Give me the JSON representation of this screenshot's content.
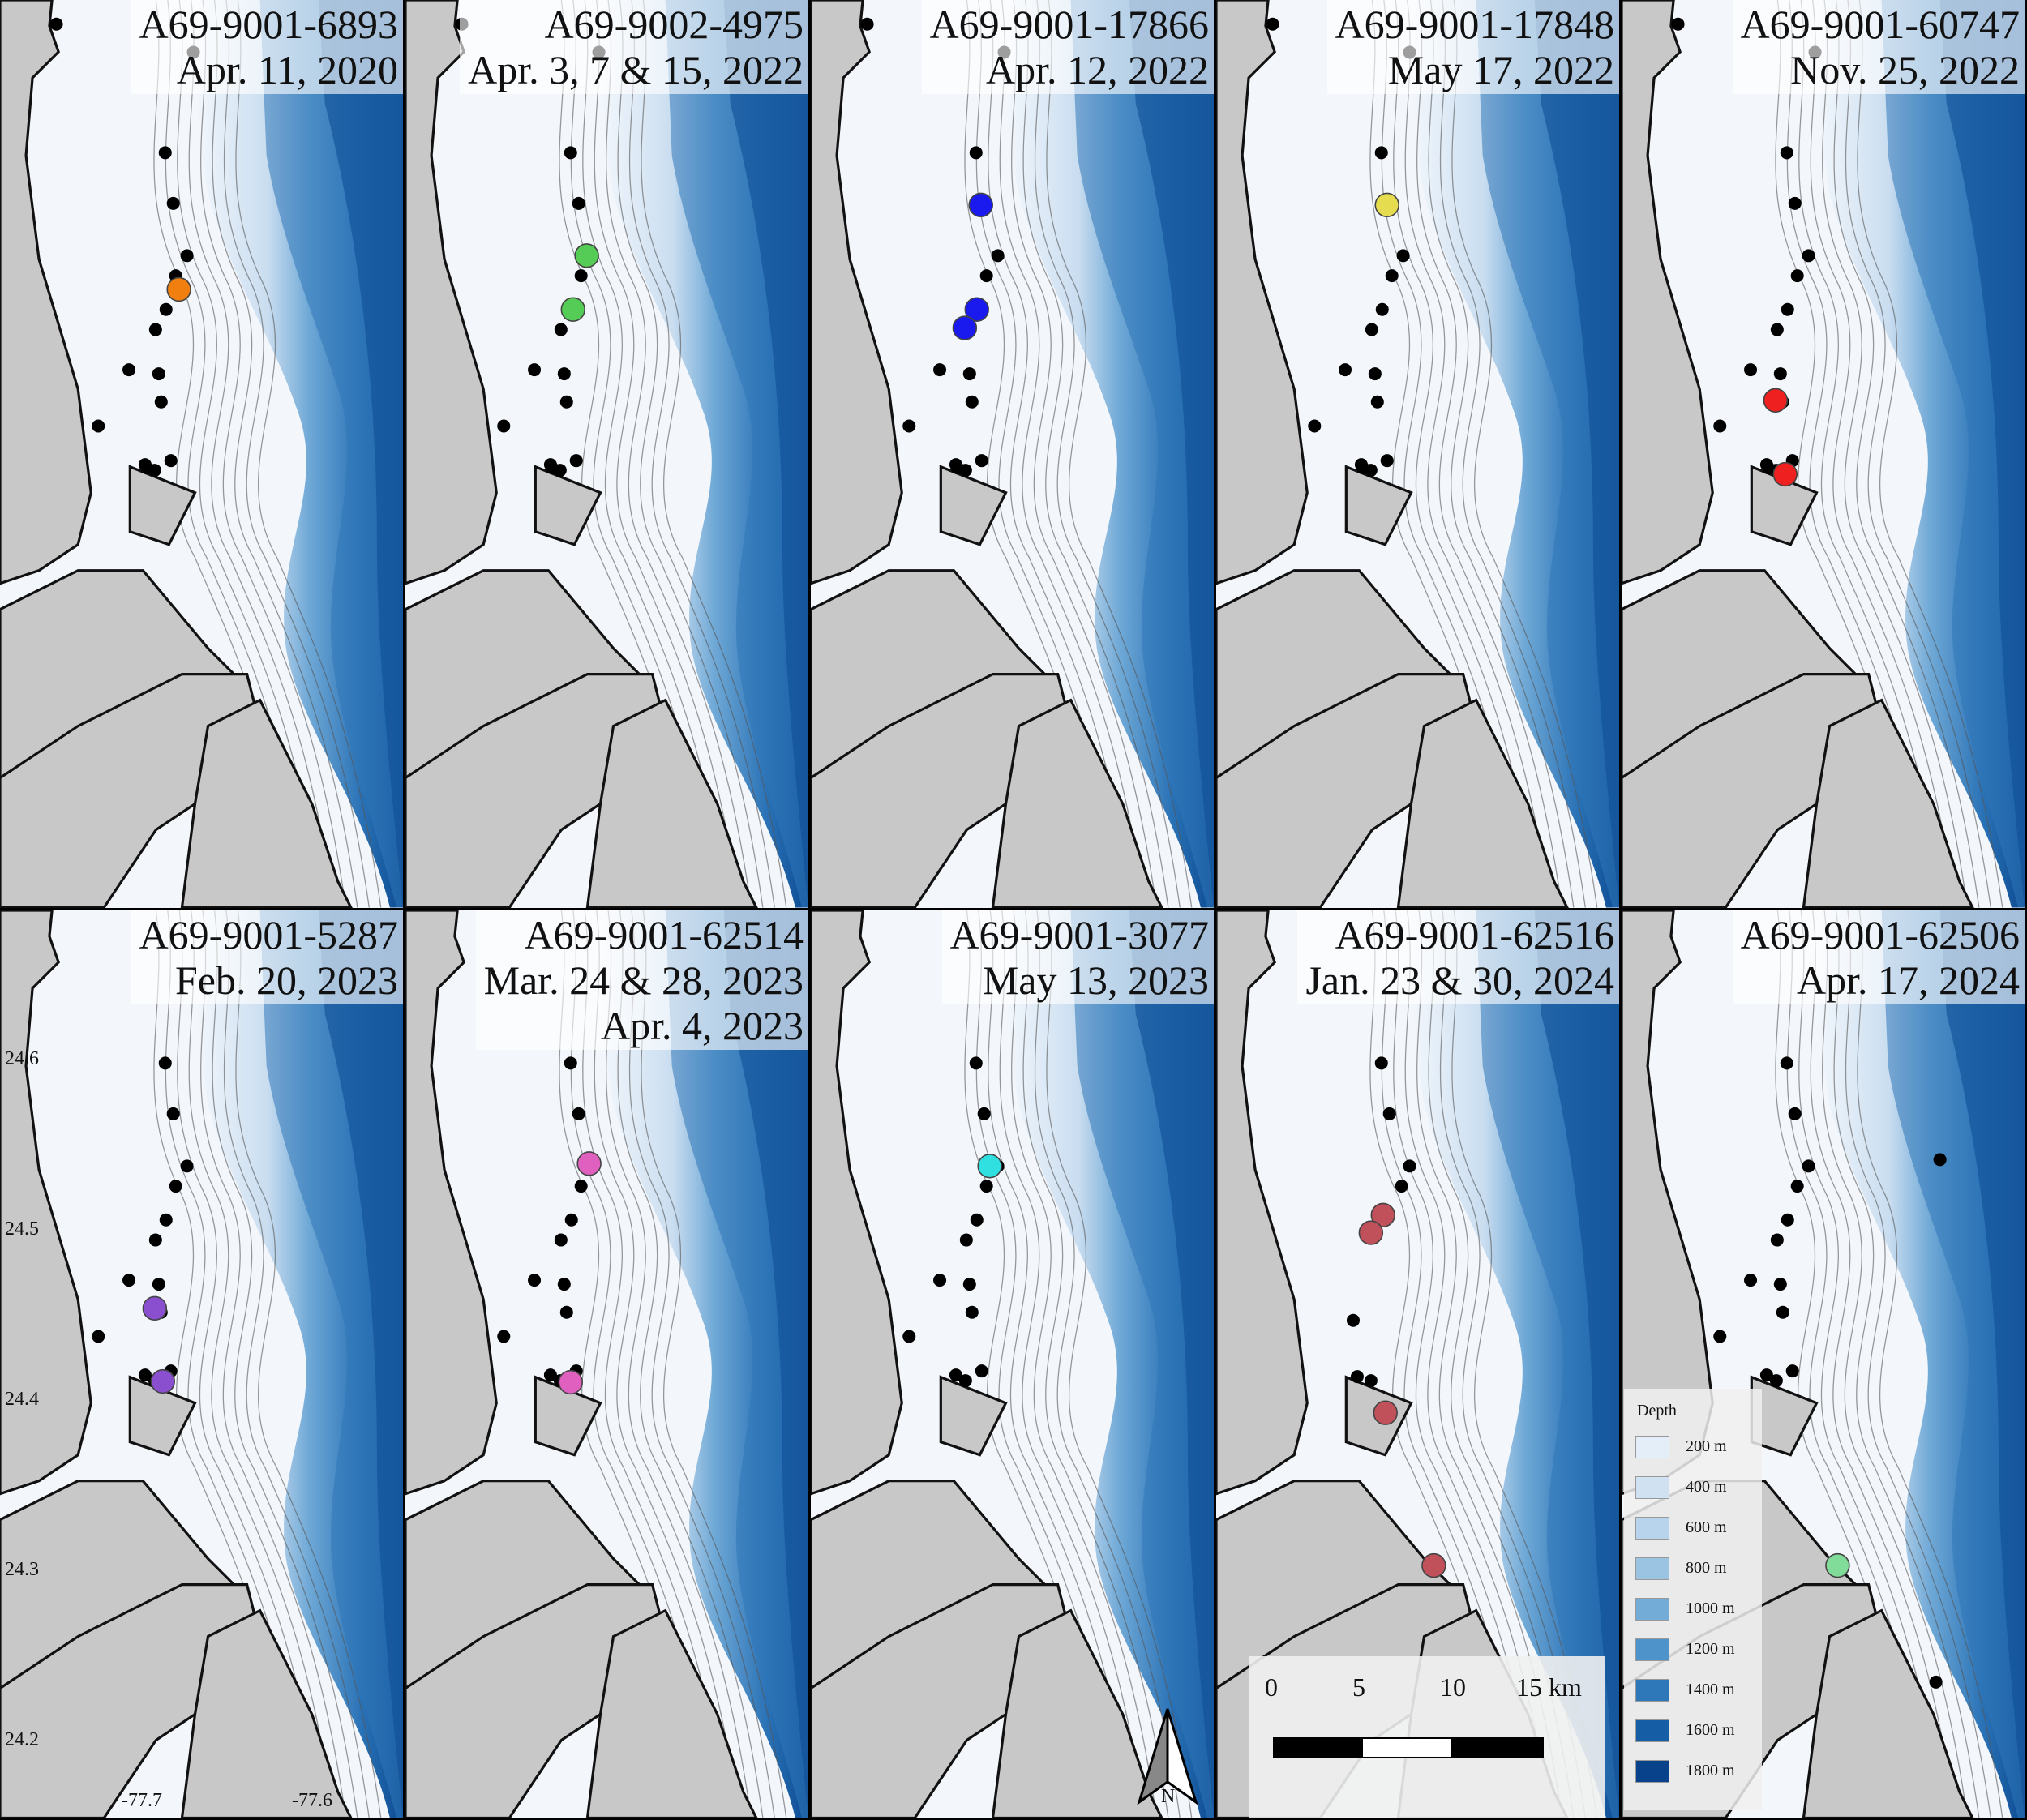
{
  "panels": [
    {
      "id": "A69-9001-6893",
      "dates": [
        "Apr. 11, 2020"
      ],
      "color": "#f07f10",
      "detections": [
        [
          222,
          360
        ]
      ],
      "receivers": "A"
    },
    {
      "id": "A69-9002-4975",
      "dates": [
        "Apr. 3, 7 & 15, 2022"
      ],
      "color": "#55cc55",
      "detections": [
        [
          225,
          318
        ],
        [
          208,
          385
        ]
      ],
      "receivers": "A"
    },
    {
      "id": "A69-9001-17866",
      "dates": [
        "Apr. 12, 2022"
      ],
      "color": "#1a1aee",
      "detections": [
        [
          211,
          255
        ],
        [
          206,
          385
        ],
        [
          191,
          408
        ]
      ],
      "receivers": "A"
    },
    {
      "id": "A69-9001-17848",
      "dates": [
        "May 17, 2022"
      ],
      "color": "#e6dc50",
      "detections": [
        [
          212,
          255
        ]
      ],
      "receivers": "A"
    },
    {
      "id": "A69-9001-60747",
      "dates": [
        "Nov. 25, 2022"
      ],
      "color": "#ee2020",
      "detections": [
        [
          191,
          498
        ],
        [
          203,
          590
        ]
      ],
      "receivers": "A"
    },
    {
      "id": "A69-9001-5287",
      "dates": [
        "Feb. 20, 2023"
      ],
      "color": "#8a4fcf",
      "detections": [
        [
          192,
          495
        ],
        [
          202,
          586
        ]
      ],
      "receivers": "B"
    },
    {
      "id": "A69-9001-62514",
      "dates": [
        "Mar. 24 & 28, 2023",
        "Apr. 4, 2023"
      ],
      "color": "#e060c0",
      "detections": [
        [
          228,
          315
        ],
        [
          205,
          587
        ]
      ],
      "receivers": "B"
    },
    {
      "id": "A69-9001-3077",
      "dates": [
        "May 13, 2023"
      ],
      "color": "#30e0e0",
      "detections": [
        [
          222,
          318
        ]
      ],
      "receivers": "B"
    },
    {
      "id": "A69-9001-62516",
      "dates": [
        "Jan. 23 & 30, 2024"
      ],
      "color": "#c0505a",
      "detections": [
        [
          207,
          379
        ],
        [
          192,
          401
        ],
        [
          210,
          625
        ],
        [
          270,
          815
        ]
      ],
      "receivers": "C"
    },
    {
      "id": "A69-9001-62506",
      "dates": [
        "Apr. 17, 2024"
      ],
      "color": "#80dc98",
      "detections": [
        [
          268,
          815
        ]
      ],
      "receivers": "D"
    }
  ],
  "receivers": {
    "A": [
      [
        70,
        30
      ],
      [
        240,
        65
      ],
      [
        205,
        190
      ],
      [
        215,
        253
      ],
      [
        232,
        318
      ],
      [
        218,
        343
      ],
      [
        206,
        385
      ],
      [
        193,
        410
      ],
      [
        197,
        465
      ],
      [
        160,
        460
      ],
      [
        122,
        530
      ],
      [
        200,
        500
      ],
      [
        212,
        573
      ],
      [
        180,
        578
      ],
      [
        182,
        582
      ],
      [
        192,
        585
      ]
    ],
    "B": [
      [
        205,
        190
      ],
      [
        215,
        253
      ],
      [
        232,
        318
      ],
      [
        218,
        343
      ],
      [
        206,
        385
      ],
      [
        193,
        410
      ],
      [
        197,
        465
      ],
      [
        160,
        460
      ],
      [
        122,
        530
      ],
      [
        200,
        500
      ],
      [
        212,
        573
      ],
      [
        180,
        578
      ],
      [
        192,
        585
      ]
    ],
    "C": [
      [
        205,
        190
      ],
      [
        215,
        253
      ],
      [
        240,
        318
      ],
      [
        230,
        343
      ],
      [
        170,
        510
      ],
      [
        175,
        580
      ],
      [
        192,
        585
      ]
    ],
    "D": [
      [
        205,
        190
      ],
      [
        215,
        253
      ],
      [
        232,
        318
      ],
      [
        218,
        343
      ],
      [
        206,
        385
      ],
      [
        193,
        410
      ],
      [
        197,
        465
      ],
      [
        160,
        460
      ],
      [
        122,
        530
      ],
      [
        200,
        500
      ],
      [
        212,
        573
      ],
      [
        180,
        578
      ],
      [
        192,
        585
      ],
      [
        395,
        310
      ],
      [
        390,
        960
      ]
    ]
  },
  "axis_ticks": {
    "lat": [
      "24.6",
      "24.5",
      "24.4",
      "24.3",
      "24.2"
    ],
    "lon": [
      "-77.7",
      "-77.6"
    ]
  },
  "legend": {
    "title": "Depth",
    "items": [
      {
        "label": "200 m",
        "color": "#e4eef9"
      },
      {
        "label": "400 m",
        "color": "#d0e1f2"
      },
      {
        "label": "600 m",
        "color": "#b8d3ec"
      },
      {
        "label": "800 m",
        "color": "#9ac4e2"
      },
      {
        "label": "1000 m",
        "color": "#73acd6"
      },
      {
        "label": "1200 m",
        "color": "#4e93c9"
      },
      {
        "label": "1400 m",
        "color": "#2e78b9"
      },
      {
        "label": "1600 m",
        "color": "#155ea6"
      },
      {
        "label": "1800 m",
        "color": "#08428a"
      }
    ]
  },
  "scale": {
    "labels": [
      "0",
      "5",
      "10",
      "15 km"
    ]
  },
  "north": {
    "label": "N"
  }
}
